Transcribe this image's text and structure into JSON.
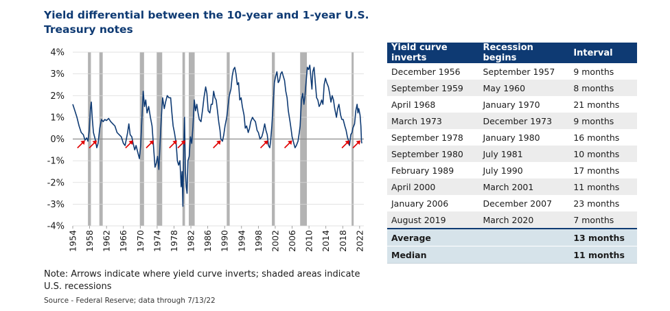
{
  "title": "Yield differential between the 10-year and 1-year U.S. Treasury notes",
  "note": "Note: Arrows indicate where yield curve inverts; shaded areas indicate U.S. recessions",
  "source": "Source - Federal Reserve; data through 7/13/22",
  "colors": {
    "line": "#0e3a73",
    "recession": "#b3b3b3",
    "arrow": "#e00000",
    "header": "#0e3a73"
  },
  "chart_data": {
    "type": "line",
    "title": "Yield differential between the 10-year and 1-year U.S. Treasury notes",
    "xlim": [
      1954,
      2023
    ],
    "ylim": [
      -4,
      4
    ],
    "y_ticks": [
      4,
      3,
      2,
      1,
      0,
      -1,
      -2,
      -3,
      -4
    ],
    "y_tick_labels": [
      "4%",
      "3%",
      "2%",
      "1%",
      "0%",
      "-1%",
      "-2%",
      "-3%",
      "-4%"
    ],
    "x_ticks": [
      1954,
      1958,
      1962,
      1966,
      1970,
      1974,
      1978,
      1982,
      1986,
      1990,
      1994,
      1998,
      2002,
      2006,
      2010,
      2014,
      2018,
      2022
    ],
    "grid": "horizontal",
    "recessions": [
      [
        1957.6,
        1958.3
      ],
      [
        1960.3,
        1961.1
      ],
      [
        1969.9,
        1970.9
      ],
      [
        1973.9,
        1975.2
      ],
      [
        1980.0,
        1980.6
      ],
      [
        1981.5,
        1982.9
      ],
      [
        1990.5,
        1991.2
      ],
      [
        2001.2,
        2001.9
      ],
      [
        2007.9,
        2009.5
      ],
      [
        2020.1,
        2020.4
      ]
    ],
    "inversions": [
      1956.9,
      1959.7,
      1968.3,
      1973.2,
      1978.7,
      1980.7,
      1989.1,
      2000.3,
      2006.0,
      2019.6,
      2022.2
    ],
    "series": [
      {
        "values": [
          [
            1954.0,
            1.6
          ],
          [
            1954.5,
            1.3
          ],
          [
            1955.0,
            1.0
          ],
          [
            1955.5,
            0.6
          ],
          [
            1956.0,
            0.3
          ],
          [
            1956.5,
            0.2
          ],
          [
            1956.9,
            -0.05
          ],
          [
            1957.3,
            0.05
          ],
          [
            1957.6,
            -0.1
          ],
          [
            1957.9,
            0.4
          ],
          [
            1958.2,
            1.4
          ],
          [
            1958.4,
            1.7
          ],
          [
            1958.6,
            1.0
          ],
          [
            1958.9,
            0.3
          ],
          [
            1959.3,
            0.0
          ],
          [
            1959.7,
            -0.4
          ],
          [
            1960.0,
            -0.2
          ],
          [
            1960.4,
            0.5
          ],
          [
            1960.8,
            0.9
          ],
          [
            1961.2,
            0.8
          ],
          [
            1961.6,
            0.9
          ],
          [
            1962.0,
            0.85
          ],
          [
            1962.5,
            0.95
          ],
          [
            1963.0,
            0.8
          ],
          [
            1963.5,
            0.7
          ],
          [
            1964.0,
            0.6
          ],
          [
            1964.5,
            0.3
          ],
          [
            1965.0,
            0.2
          ],
          [
            1965.5,
            0.1
          ],
          [
            1966.0,
            -0.2
          ],
          [
            1966.4,
            -0.3
          ],
          [
            1966.8,
            0.1
          ],
          [
            1967.0,
            0.3
          ],
          [
            1967.3,
            0.7
          ],
          [
            1967.6,
            0.2
          ],
          [
            1968.0,
            0.1
          ],
          [
            1968.3,
            -0.2
          ],
          [
            1968.7,
            -0.5
          ],
          [
            1969.0,
            -0.3
          ],
          [
            1969.4,
            -0.6
          ],
          [
            1969.8,
            -0.9
          ],
          [
            1970.1,
            -0.3
          ],
          [
            1970.4,
            1.0
          ],
          [
            1970.7,
            2.2
          ],
          [
            1971.0,
            1.5
          ],
          [
            1971.3,
            1.8
          ],
          [
            1971.6,
            1.2
          ],
          [
            1972.0,
            1.5
          ],
          [
            1972.4,
            1.0
          ],
          [
            1972.8,
            0.6
          ],
          [
            1973.2,
            -0.5
          ],
          [
            1973.5,
            -1.3
          ],
          [
            1973.8,
            -1.1
          ],
          [
            1974.1,
            -0.8
          ],
          [
            1974.4,
            -1.4
          ],
          [
            1974.8,
            0.2
          ],
          [
            1975.0,
            1.0
          ],
          [
            1975.3,
            1.9
          ],
          [
            1975.7,
            1.4
          ],
          [
            1976.0,
            1.7
          ],
          [
            1976.4,
            2.0
          ],
          [
            1976.8,
            1.9
          ],
          [
            1977.2,
            1.9
          ],
          [
            1977.5,
            1.2
          ],
          [
            1977.8,
            0.6
          ],
          [
            1978.1,
            0.3
          ],
          [
            1978.5,
            -0.2
          ],
          [
            1978.8,
            -1.0
          ],
          [
            1979.1,
            -1.2
          ],
          [
            1979.4,
            -1.0
          ],
          [
            1979.7,
            -2.2
          ],
          [
            1979.9,
            -1.5
          ],
          [
            1980.1,
            -3.1
          ],
          [
            1980.3,
            -0.5
          ],
          [
            1980.5,
            1.0
          ],
          [
            1980.7,
            -1.5
          ],
          [
            1980.9,
            -2.2
          ],
          [
            1981.1,
            -2.5
          ],
          [
            1981.3,
            -1.0
          ],
          [
            1981.6,
            -0.8
          ],
          [
            1981.9,
            0.1
          ],
          [
            1982.2,
            -0.2
          ],
          [
            1982.5,
            0.6
          ],
          [
            1982.8,
            1.8
          ],
          [
            1983.1,
            1.3
          ],
          [
            1983.4,
            1.6
          ],
          [
            1983.7,
            1.2
          ],
          [
            1984.0,
            0.9
          ],
          [
            1984.4,
            0.8
          ],
          [
            1984.8,
            1.4
          ],
          [
            1985.1,
            1.9
          ],
          [
            1985.5,
            2.4
          ],
          [
            1985.8,
            2.1
          ],
          [
            1986.1,
            1.3
          ],
          [
            1986.5,
            1.2
          ],
          [
            1986.8,
            1.6
          ],
          [
            1987.1,
            1.6
          ],
          [
            1987.4,
            2.2
          ],
          [
            1987.7,
            1.9
          ],
          [
            1988.0,
            1.8
          ],
          [
            1988.3,
            1.3
          ],
          [
            1988.6,
            0.8
          ],
          [
            1988.9,
            0.4
          ],
          [
            1989.1,
            0.0
          ],
          [
            1989.5,
            -0.1
          ],
          [
            1989.8,
            0.2
          ],
          [
            1990.1,
            0.6
          ],
          [
            1990.5,
            1.0
          ],
          [
            1990.8,
            1.5
          ],
          [
            1991.1,
            2.0
          ],
          [
            1991.5,
            2.3
          ],
          [
            1991.8,
            2.9
          ],
          [
            1992.1,
            3.2
          ],
          [
            1992.4,
            3.3
          ],
          [
            1992.7,
            3.0
          ],
          [
            1993.0,
            2.5
          ],
          [
            1993.3,
            2.6
          ],
          [
            1993.6,
            1.8
          ],
          [
            1993.9,
            1.9
          ],
          [
            1994.2,
            1.5
          ],
          [
            1994.6,
            1.1
          ],
          [
            1994.9,
            0.5
          ],
          [
            1995.2,
            0.6
          ],
          [
            1995.6,
            0.3
          ],
          [
            1995.9,
            0.5
          ],
          [
            1996.2,
            0.8
          ],
          [
            1996.6,
            1.0
          ],
          [
            1996.9,
            0.9
          ],
          [
            1997.3,
            0.8
          ],
          [
            1997.7,
            0.4
          ],
          [
            1998.0,
            0.3
          ],
          [
            1998.4,
            0.0
          ],
          [
            1998.8,
            0.1
          ],
          [
            1999.1,
            0.3
          ],
          [
            1999.5,
            0.7
          ],
          [
            1999.8,
            0.4
          ],
          [
            2000.1,
            0.2
          ],
          [
            2000.4,
            -0.3
          ],
          [
            2000.7,
            -0.4
          ],
          [
            2000.9,
            -0.1
          ],
          [
            2001.2,
            0.6
          ],
          [
            2001.5,
            1.6
          ],
          [
            2001.8,
            2.6
          ],
          [
            2002.1,
            2.9
          ],
          [
            2002.4,
            3.1
          ],
          [
            2002.7,
            2.6
          ],
          [
            2003.0,
            2.7
          ],
          [
            2003.3,
            3.0
          ],
          [
            2003.6,
            3.1
          ],
          [
            2003.9,
            2.9
          ],
          [
            2004.2,
            2.7
          ],
          [
            2004.5,
            2.2
          ],
          [
            2004.8,
            1.9
          ],
          [
            2005.1,
            1.3
          ],
          [
            2005.5,
            0.8
          ],
          [
            2005.8,
            0.4
          ],
          [
            2006.0,
            0.1
          ],
          [
            2006.4,
            -0.2
          ],
          [
            2006.7,
            -0.4
          ],
          [
            2007.0,
            -0.3
          ],
          [
            2007.4,
            -0.1
          ],
          [
            2007.7,
            0.3
          ],
          [
            2007.9,
            0.6
          ],
          [
            2008.2,
            1.8
          ],
          [
            2008.5,
            2.1
          ],
          [
            2008.8,
            1.6
          ],
          [
            2009.0,
            1.9
          ],
          [
            2009.3,
            2.6
          ],
          [
            2009.6,
            3.3
          ],
          [
            2009.9,
            3.2
          ],
          [
            2010.2,
            3.4
          ],
          [
            2010.5,
            2.7
          ],
          [
            2010.7,
            2.3
          ],
          [
            2010.9,
            3.1
          ],
          [
            2011.2,
            3.3
          ],
          [
            2011.5,
            2.6
          ],
          [
            2011.8,
            1.9
          ],
          [
            2012.1,
            1.8
          ],
          [
            2012.4,
            1.5
          ],
          [
            2012.7,
            1.6
          ],
          [
            2013.0,
            1.8
          ],
          [
            2013.3,
            1.6
          ],
          [
            2013.6,
            2.5
          ],
          [
            2013.9,
            2.8
          ],
          [
            2014.2,
            2.6
          ],
          [
            2014.6,
            2.4
          ],
          [
            2014.9,
            2.1
          ],
          [
            2015.2,
            1.7
          ],
          [
            2015.5,
            2.0
          ],
          [
            2015.8,
            1.8
          ],
          [
            2016.1,
            1.4
          ],
          [
            2016.5,
            1.0
          ],
          [
            2016.8,
            1.4
          ],
          [
            2017.1,
            1.6
          ],
          [
            2017.5,
            1.1
          ],
          [
            2017.8,
            0.9
          ],
          [
            2018.1,
            0.9
          ],
          [
            2018.5,
            0.6
          ],
          [
            2018.8,
            0.4
          ],
          [
            2019.1,
            0.1
          ],
          [
            2019.4,
            -0.1
          ],
          [
            2019.6,
            -0.3
          ],
          [
            2019.9,
            0.2
          ],
          [
            2020.2,
            0.3
          ],
          [
            2020.4,
            0.5
          ],
          [
            2020.8,
            0.7
          ],
          [
            2021.1,
            1.3
          ],
          [
            2021.4,
            1.6
          ],
          [
            2021.6,
            1.2
          ],
          [
            2021.8,
            1.4
          ],
          [
            2022.1,
            1.1
          ],
          [
            2022.3,
            0.6
          ],
          [
            2022.45,
            -0.1
          ],
          [
            2022.53,
            -0.2
          ]
        ]
      }
    ]
  },
  "table": {
    "headers": [
      "Yield curve inverts",
      "Recession begins",
      "Interval"
    ],
    "rows": [
      [
        "December 1956",
        "September 1957",
        "9 months"
      ],
      [
        "September 1959",
        "May 1960",
        "8 months"
      ],
      [
        "April 1968",
        "January 1970",
        "21 months"
      ],
      [
        "March 1973",
        "December 1973",
        "9 months"
      ],
      [
        "September 1978",
        "January 1980",
        "16 months"
      ],
      [
        "September 1980",
        "July 1981",
        "10 months"
      ],
      [
        "February 1989",
        "July 1990",
        "17 months"
      ],
      [
        "April 2000",
        "March 2001",
        "11 months"
      ],
      [
        "January 2006",
        "December 2007",
        "23 months"
      ],
      [
        "August 2019",
        "March 2020",
        "7 months"
      ]
    ],
    "summary": [
      [
        "Average",
        "",
        "13 months"
      ],
      [
        "Median",
        "",
        "11 months"
      ]
    ]
  }
}
